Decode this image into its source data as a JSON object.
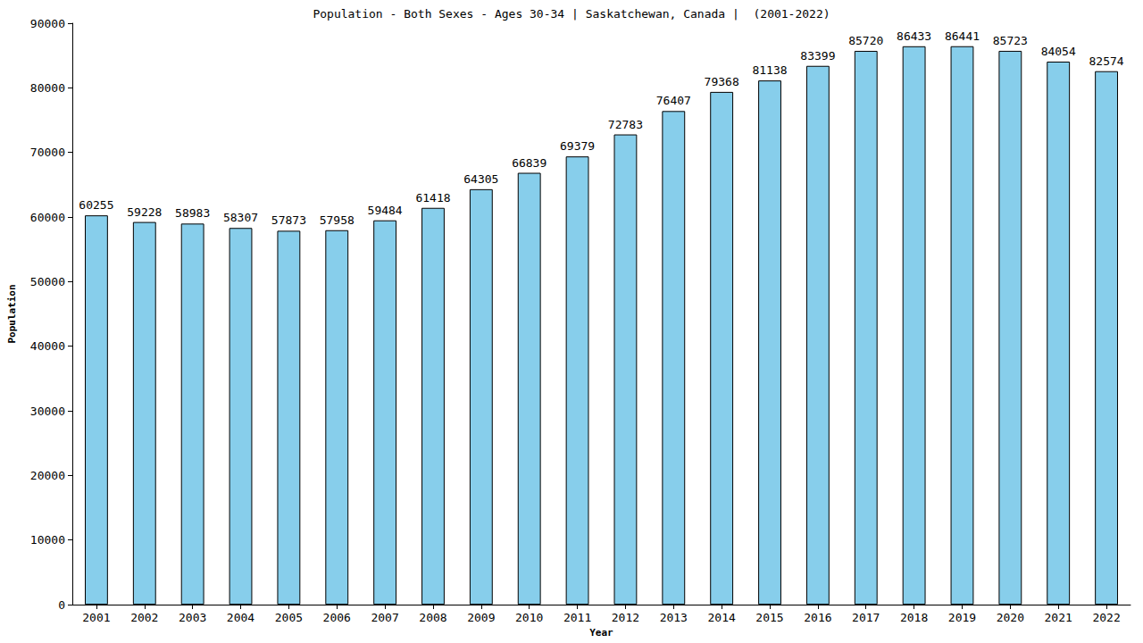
{
  "chart_data": {
    "type": "bar",
    "title": "Population - Both Sexes - Ages 30-34 | Saskatchewan, Canada |  (2001-2022)",
    "x_label": "Year",
    "y_label": "Population",
    "categories": [
      "2001",
      "2002",
      "2003",
      "2004",
      "2005",
      "2006",
      "2007",
      "2008",
      "2009",
      "2010",
      "2011",
      "2012",
      "2013",
      "2014",
      "2015",
      "2016",
      "2017",
      "2018",
      "2019",
      "2020",
      "2021",
      "2022"
    ],
    "values": [
      60255,
      59228,
      58983,
      58307,
      57873,
      57958,
      59484,
      61418,
      64305,
      66839,
      69379,
      72783,
      76407,
      79368,
      81138,
      83399,
      85720,
      86433,
      86441,
      85723,
      84054,
      82574
    ],
    "color": "#87ceeb",
    "ylim": [
      0,
      90000
    ],
    "yticks": [
      0,
      10000,
      20000,
      30000,
      40000,
      50000,
      60000,
      70000,
      80000,
      90000
    ],
    "grid": false,
    "data_labels": true
  }
}
